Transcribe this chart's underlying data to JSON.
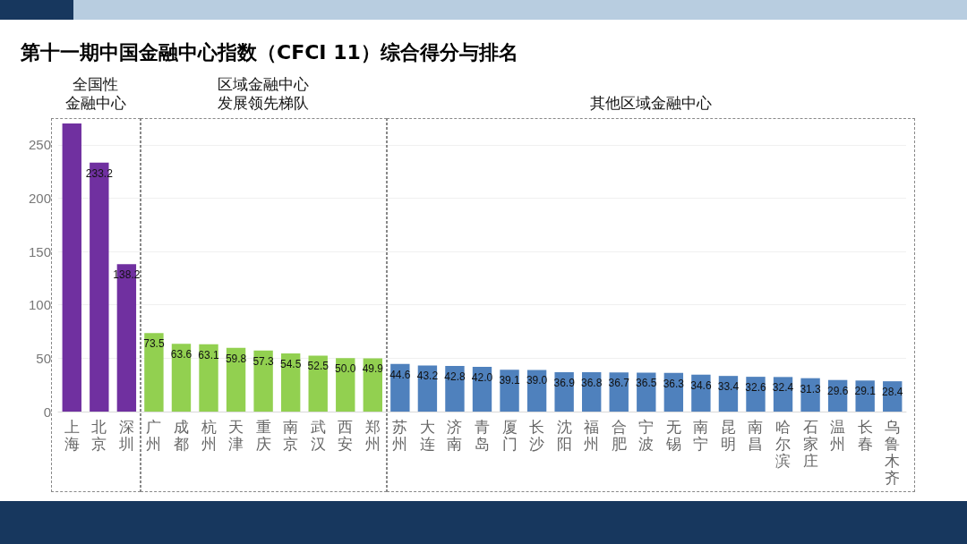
{
  "chart_data": {
    "type": "bar",
    "title": "第十一期中国金融中心指数（CFCI 11）综合得分与排名",
    "categories": [
      "上海",
      "北京",
      "深圳",
      "广州",
      "成都",
      "杭州",
      "天津",
      "重庆",
      "南京",
      "武汉",
      "西安",
      "郑州",
      "苏州",
      "大连",
      "济南",
      "青岛",
      "厦门",
      "长沙",
      "沈阳",
      "福州",
      "合肥",
      "宁波",
      "无锡",
      "南宁",
      "昆明",
      "南昌",
      "哈尔滨",
      "石家庄",
      "温州",
      "长春",
      "乌鲁木齐"
    ],
    "values": [
      270,
      233.2,
      138.2,
      73.5,
      63.6,
      63.1,
      59.8,
      57.3,
      54.5,
      52.5,
      50.0,
      49.9,
      44.6,
      43.2,
      42.8,
      42.0,
      39.1,
      39.0,
      36.9,
      36.8,
      36.7,
      36.5,
      36.3,
      34.6,
      33.4,
      32.6,
      32.4,
      31.3,
      29.6,
      29.1,
      28.4
    ],
    "value_labels": [
      null,
      "233.2",
      "138.2",
      "73.5",
      "63.6",
      "63.1",
      "59.8",
      "57.3",
      "54.5",
      "52.5",
      "50.0",
      "49.9",
      "44.6",
      "43.2",
      "42.8",
      "42.0",
      "39.1",
      "39.0",
      "36.9",
      "36.8",
      "36.7",
      "36.5",
      "36.3",
      "34.6",
      "33.4",
      "32.6",
      "32.4",
      "31.3",
      "29.6",
      "29.1",
      "28.4"
    ],
    "colors": [
      "#7030a0",
      "#7030a0",
      "#7030a0",
      "#92d050",
      "#92d050",
      "#92d050",
      "#92d050",
      "#92d050",
      "#92d050",
      "#92d050",
      "#92d050",
      "#92d050",
      "#4f81bd",
      "#4f81bd",
      "#4f81bd",
      "#4f81bd",
      "#4f81bd",
      "#4f81bd",
      "#4f81bd",
      "#4f81bd",
      "#4f81bd",
      "#4f81bd",
      "#4f81bd",
      "#4f81bd",
      "#4f81bd",
      "#4f81bd",
      "#4f81bd",
      "#4f81bd",
      "#4f81bd",
      "#4f81bd",
      "#4f81bd"
    ],
    "annotations": [
      "全国性金融中心",
      "区域金融中心发展领先梯队",
      "其他区域金融中心"
    ],
    "ylim": [
      0,
      275
    ],
    "yticks": [
      0,
      50,
      100,
      150,
      200,
      250
    ],
    "grid": "y"
  }
}
